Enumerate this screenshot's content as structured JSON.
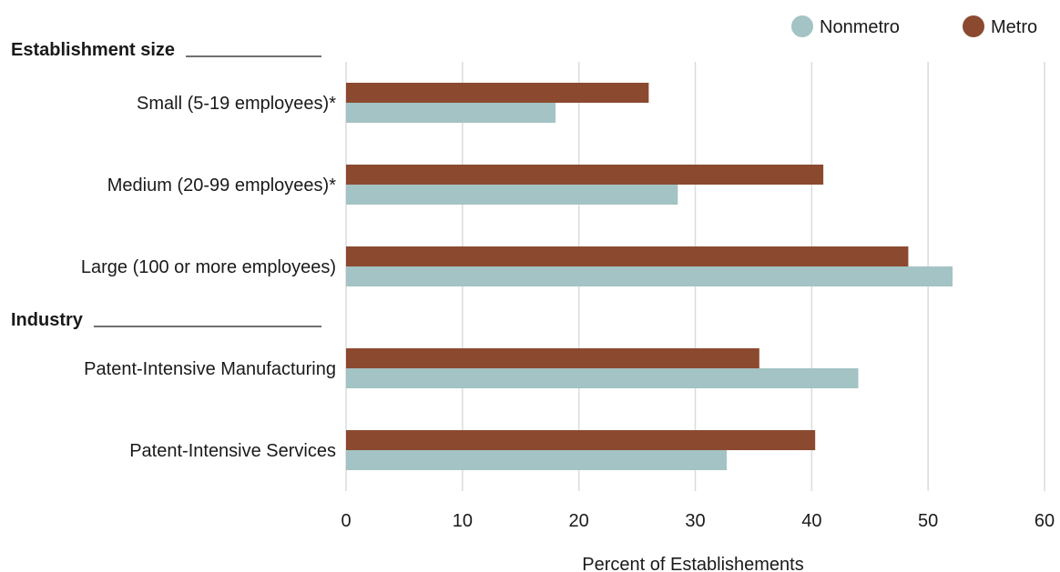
{
  "chart_data": {
    "type": "bar",
    "orientation": "horizontal",
    "xlabel": "Percent of Establishements",
    "xlim": [
      0,
      60
    ],
    "xticks": [
      0,
      10,
      20,
      30,
      40,
      50,
      60
    ],
    "grid": true,
    "legend_position": "top-right",
    "legend": [
      {
        "name": "Nonmetro",
        "color": "#a3c3c4"
      },
      {
        "name": "Metro",
        "color": "#8b4a30"
      }
    ],
    "groups": [
      {
        "heading": "Establishment size",
        "categories": [
          {
            "label": "Small (5-19 employees)*",
            "metro": 26,
            "nonmetro": 18
          },
          {
            "label": "Medium (20-99 employees)*",
            "metro": 41,
            "nonmetro": 28.5
          },
          {
            "label": "Large (100 or more employees)",
            "metro": 48.3,
            "nonmetro": 52.1
          }
        ]
      },
      {
        "heading": "Industry",
        "categories": [
          {
            "label": "Patent-Intensive Manufacturing",
            "metro": 35.5,
            "nonmetro": 44
          },
          {
            "label": "Patent-Intensive Services",
            "metro": 40.3,
            "nonmetro": 32.7
          }
        ]
      }
    ]
  }
}
